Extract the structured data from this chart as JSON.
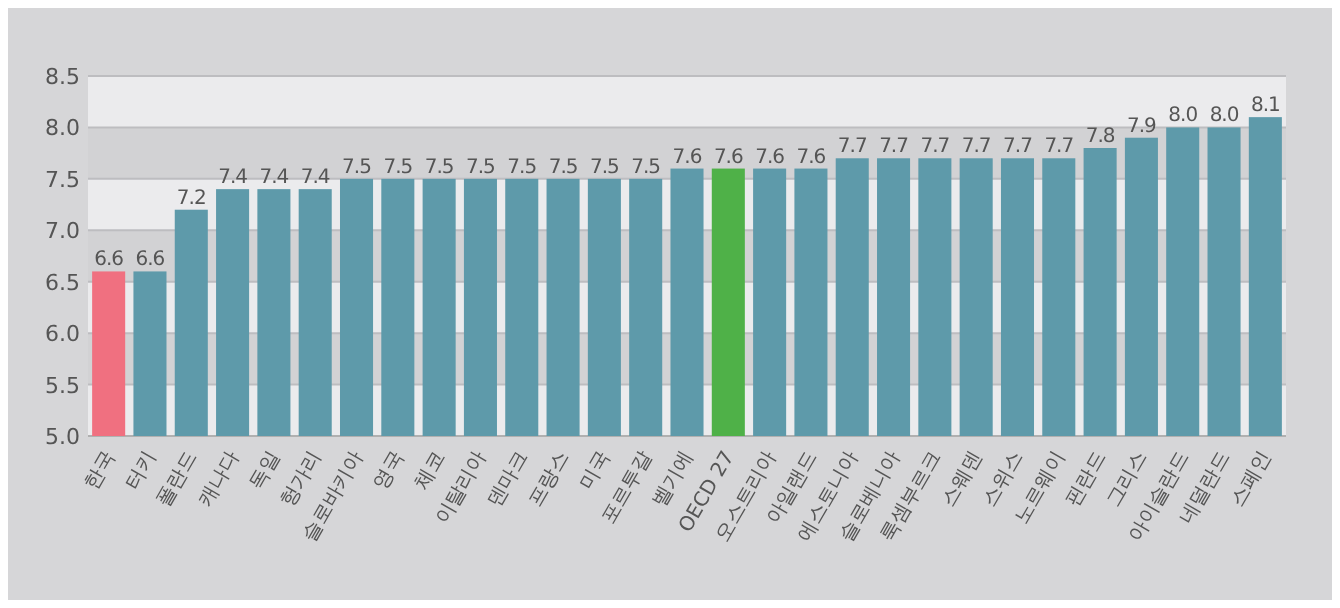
{
  "chart_data": {
    "type": "bar",
    "categories": [
      "한국",
      "터키",
      "폴란드",
      "캐나다",
      "독일",
      "헝가리",
      "슬로바키아",
      "영국",
      "체코",
      "이탈리아",
      "덴마크",
      "프랑스",
      "미국",
      "포르투갈",
      "벨기에",
      "OECD 27",
      "오스트리아",
      "아일랜드",
      "에스토니아",
      "슬로베니아",
      "룩셈부르크",
      "스웨덴",
      "스위스",
      "노르웨이",
      "핀란드",
      "그리스",
      "아이슬란드",
      "네덜란드",
      "스페인"
    ],
    "values": [
      6.6,
      6.6,
      7.2,
      7.4,
      7.4,
      7.4,
      7.5,
      7.5,
      7.5,
      7.5,
      7.5,
      7.5,
      7.5,
      7.5,
      7.6,
      7.6,
      7.6,
      7.6,
      7.7,
      7.7,
      7.7,
      7.7,
      7.7,
      7.7,
      7.8,
      7.9,
      8.0,
      8.0,
      8.1
    ],
    "colors": [
      "#f07080",
      "#5e9aaa",
      "#5e9aaa",
      "#5e9aaa",
      "#5e9aaa",
      "#5e9aaa",
      "#5e9aaa",
      "#5e9aaa",
      "#5e9aaa",
      "#5e9aaa",
      "#5e9aaa",
      "#5e9aaa",
      "#5e9aaa",
      "#5e9aaa",
      "#5e9aaa",
      "#4fb148",
      "#5e9aaa",
      "#5e9aaa",
      "#5e9aaa",
      "#5e9aaa",
      "#5e9aaa",
      "#5e9aaa",
      "#5e9aaa",
      "#5e9aaa",
      "#5e9aaa",
      "#5e9aaa",
      "#5e9aaa",
      "#5e9aaa",
      "#5e9aaa"
    ],
    "ylim": [
      5.0,
      8.5
    ],
    "yticks": [
      {
        "value": 5.0,
        "label": "5.0"
      },
      {
        "value": 5.5,
        "label": "5.5"
      },
      {
        "value": 6.0,
        "label": "6.0"
      },
      {
        "value": 6.5,
        "label": "6.5"
      },
      {
        "value": 7.0,
        "label": "7.0"
      },
      {
        "value": 7.5,
        "label": "7.5"
      },
      {
        "value": 8.0,
        "label": "8.0"
      },
      {
        "value": 8.5,
        "label": "8.5"
      }
    ],
    "grid": "y",
    "value_labels": [
      "6.6",
      "6.6",
      "7.2",
      "7.4",
      "7.4",
      "7.4",
      "7.5",
      "7.5",
      "7.5",
      "7.5",
      "7.5",
      "7.5",
      "7.5",
      "7.5",
      "7.6",
      "7.6",
      "7.6",
      "7.6",
      "7.7",
      "7.7",
      "7.7",
      "7.7",
      "7.7",
      "7.7",
      "7.8",
      "7.9",
      "8.0",
      "8.0",
      "8.1"
    ]
  }
}
